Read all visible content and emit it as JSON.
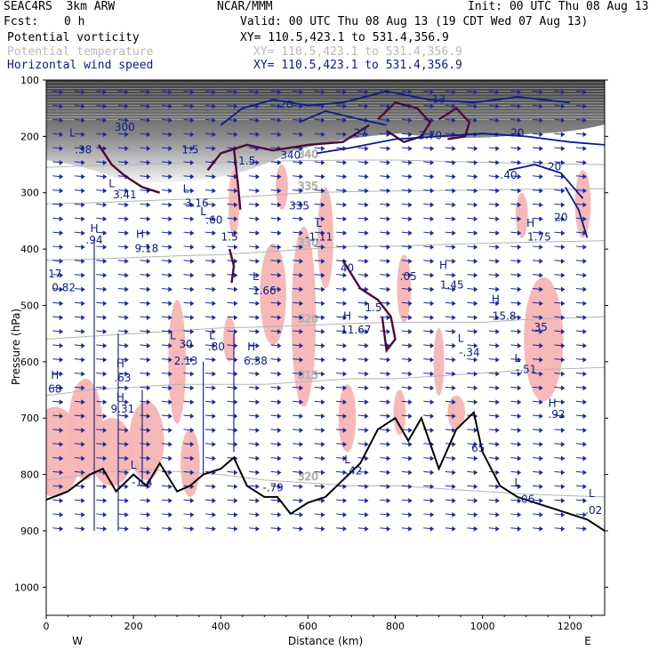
{
  "header": {
    "model_name": "SEAC4RS  3km ARW",
    "institution": "NCAR/MMM",
    "init_time": "Init: 00 UTC Thu 08 Aug 13",
    "forecast_label": "Fcst:",
    "forecast_hours": "0 h",
    "valid_time": "Valid: 00 UTC Thu 08 Aug 13 (19 CDT Wed 07 Aug 13)",
    "fields": [
      {
        "name": "Potential vorticity",
        "xy": "XY= 110.5,423.1 to 531.4,356.9",
        "color": "#000000"
      },
      {
        "name": "Potential temperature",
        "xy": "XY= 110.5,423.1 to 531.4,356.9",
        "color": "#b8b8b8"
      },
      {
        "name": "Horizontal wind speed",
        "xy": "XY= 110.5,423.1 to 531.4,356.9",
        "color": "#0b1a8a"
      }
    ]
  },
  "chart_data": {
    "type": "cross-section",
    "xlabel": "Distance (km)",
    "ylabel": "Pressure (hPa)",
    "xlim": [
      0,
      1280
    ],
    "ylim": [
      1050,
      100
    ],
    "x_ticks": [
      0,
      200,
      400,
      600,
      800,
      1000,
      1200
    ],
    "y_ticks": [
      100,
      200,
      300,
      400,
      500,
      600,
      700,
      800,
      900,
      1000
    ],
    "endpoints": {
      "left": "W",
      "right": "E"
    },
    "colors": {
      "pv_contour": "#4a0a3c",
      "theta_contour": "#b4b4b4",
      "wind_speed": "#0b1a8a",
      "pv_shading": "#f7b4b4",
      "terrain": "#000000"
    },
    "terrain_surface_hpa": {
      "x": [
        0,
        50,
        100,
        130,
        160,
        200,
        230,
        260,
        300,
        330,
        360,
        400,
        430,
        460,
        500,
        530,
        560,
        600,
        640,
        680,
        720,
        760,
        800,
        830,
        860,
        900,
        940,
        980,
        1000,
        1040,
        1080,
        1120,
        1160,
        1200,
        1240,
        1280
      ],
      "p": [
        845,
        830,
        800,
        790,
        830,
        800,
        820,
        780,
        830,
        820,
        800,
        790,
        770,
        820,
        840,
        840,
        870,
        850,
        840,
        810,
        780,
        720,
        700,
        740,
        700,
        790,
        720,
        690,
        760,
        820,
        840,
        850,
        860,
        870,
        880,
        900
      ]
    },
    "theta_isentropes": [
      {
        "label": "320",
        "p": [
          810,
          800,
          790,
          795,
          800,
          810,
          815,
          820,
          820,
          825,
          830,
          835,
          840
        ]
      },
      {
        "label": "315",
        "p": [
          660,
          650,
          645,
          640,
          640,
          640,
          635,
          630,
          630,
          625,
          620,
          615,
          610
        ]
      },
      {
        "label": "320",
        "p": [
          560,
          555,
          550,
          545,
          540,
          538,
          535,
          532,
          530,
          530,
          530,
          525,
          520
        ]
      },
      {
        "label": "330",
        "p": [
          420,
          418,
          415,
          412,
          410,
          405,
          400,
          395,
          395,
          392,
          390,
          388,
          385
        ]
      },
      {
        "label": "335",
        "p": [
          320,
          318,
          315,
          312,
          310,
          305,
          300,
          298,
          297,
          296,
          295,
          294,
          293
        ]
      },
      {
        "label": "340",
        "p": [
          255,
          252,
          250,
          248,
          246,
          244,
          243,
          242,
          242,
          244,
          246,
          248,
          250
        ]
      }
    ],
    "pv_extrema_labels": [
      {
        "text": "L",
        "x": 60,
        "p": 200
      },
      {
        "text": ".38",
        "x": 85,
        "p": 230
      },
      {
        "text": "300",
        "x": 180,
        "p": 190
      },
      {
        "text": "L",
        "x": 150,
        "p": 290
      },
      {
        "text": "3.41",
        "x": 180,
        "p": 310
      },
      {
        "text": "L",
        "x": 320,
        "p": 300
      },
      {
        "text": "3.16",
        "x": 345,
        "p": 325
      },
      {
        "text": "L",
        "x": 360,
        "p": 340
      },
      {
        "text": ".60",
        "x": 385,
        "p": 355
      },
      {
        "text": "1.5",
        "x": 330,
        "p": 230
      },
      {
        "text": "1.5",
        "x": 460,
        "p": 250
      },
      {
        "text": "340",
        "x": 560,
        "p": 240
      },
      {
        "text": "1.5",
        "x": 420,
        "p": 385
      },
      {
        "text": "H",
        "x": 110,
        "p": 370
      },
      {
        "text": ".94",
        "x": 110,
        "p": 390
      },
      {
        "text": "H",
        "x": 215,
        "p": 380
      },
      {
        "text": "9.18",
        "x": 230,
        "p": 405
      },
      {
        "text": "17",
        "x": 20,
        "p": 450
      },
      {
        "text": "0.82",
        "x": 40,
        "p": 475
      },
      {
        "text": "L",
        "x": 625,
        "p": 360
      },
      {
        "text": "-1.11",
        "x": 625,
        "p": 385
      },
      {
        "text": "335",
        "x": 580,
        "p": 330
      },
      {
        "text": "L",
        "x": 480,
        "p": 455
      },
      {
        "text": "1.66",
        "x": 500,
        "p": 480
      },
      {
        "text": "40",
        "x": 690,
        "p": 440
      },
      {
        "text": ".05",
        "x": 830,
        "p": 455
      },
      {
        "text": "H",
        "x": 910,
        "p": 435
      },
      {
        "text": "1.45",
        "x": 930,
        "p": 470
      },
      {
        "text": "H",
        "x": 690,
        "p": 525
      },
      {
        "text": "11.67",
        "x": 710,
        "p": 550
      },
      {
        "text": "1.5",
        "x": 750,
        "p": 510
      },
      {
        "text": "H",
        "x": 1030,
        "p": 495
      },
      {
        "text": "15.8",
        "x": 1050,
        "p": 525
      },
      {
        "text": "L",
        "x": 290,
        "p": 560
      },
      {
        "text": "30",
        "x": 320,
        "p": 575
      },
      {
        "text": "2.13",
        "x": 320,
        "p": 605
      },
      {
        "text": "L",
        "x": 380,
        "p": 560
      },
      {
        "text": ".80",
        "x": 390,
        "p": 580
      },
      {
        "text": "H",
        "x": 470,
        "p": 580
      },
      {
        "text": "6.38",
        "x": 480,
        "p": 605
      },
      {
        "text": "L",
        "x": 950,
        "p": 565
      },
      {
        "text": "-.34",
        "x": 970,
        "p": 590
      },
      {
        "text": ".35",
        "x": 1130,
        "p": 545
      },
      {
        "text": "L",
        "x": 1080,
        "p": 600
      },
      {
        "text": "-.51",
        "x": 1100,
        "p": 620
      },
      {
        "text": "H",
        "x": 20,
        "p": 630
      },
      {
        "text": "68",
        "x": 20,
        "p": 655
      },
      {
        "text": "H",
        "x": 170,
        "p": 610
      },
      {
        "text": ".63",
        "x": 175,
        "p": 635
      },
      {
        "text": "H",
        "x": 170,
        "p": 670
      },
      {
        "text": "9.31",
        "x": 175,
        "p": 690
      },
      {
        "text": "H",
        "x": 1160,
        "p": 680
      },
      {
        "text": ".92",
        "x": 1170,
        "p": 700
      },
      {
        "text": "L",
        "x": 200,
        "p": 790
      },
      {
        "text": "-1.4",
        "x": 220,
        "p": 820
      },
      {
        "text": "L",
        "x": 690,
        "p": 780
      },
      {
        "text": ".42",
        "x": 705,
        "p": 800
      },
      {
        "text": "-.79",
        "x": 520,
        "p": 830
      },
      {
        "text": "L",
        "x": 1080,
        "p": 820
      },
      {
        "text": ".06",
        "x": 1100,
        "p": 850
      },
      {
        "text": "L",
        "x": 1250,
        "p": 840
      },
      {
        "text": ".02",
        "x": 1255,
        "p": 870
      }
    ],
    "wind_speed_labels": [
      {
        "text": "20",
        "x": 550,
        "p": 150
      },
      {
        "text": "20",
        "x": 1080,
        "p": 200
      },
      {
        "text": "20",
        "x": 1165,
        "p": 260
      },
      {
        "text": "20",
        "x": 1180,
        "p": 350
      },
      {
        "text": "H",
        "x": 1110,
        "p": 360
      },
      {
        "text": "1.75",
        "x": 1130,
        "p": 385
      },
      {
        "text": "13",
        "x": 900,
        "p": 140
      },
      {
        "text": "3.70",
        "x": 880,
        "p": 205
      },
      {
        "text": "27",
        "x": 720,
        "p": 200
      },
      {
        "text": ".40",
        "x": 1060,
        "p": 275
      },
      {
        "text": "65",
        "x": 990,
        "p": 760
      }
    ]
  }
}
